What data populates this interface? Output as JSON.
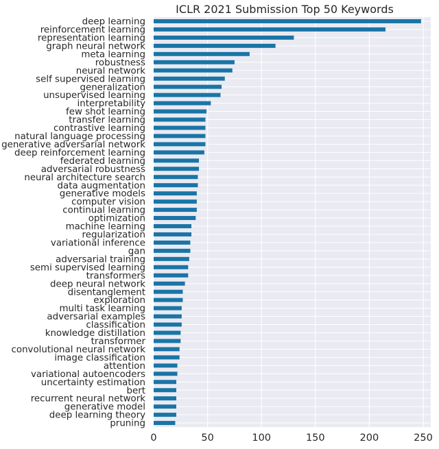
{
  "chart_data": {
    "type": "bar",
    "orientation": "horizontal",
    "title": "ICLR 2021 Submission Top 50 Keywords",
    "xlabel": "",
    "ylabel": "",
    "xlim": [
      0,
      257
    ],
    "xticks": [
      0,
      50,
      100,
      150,
      200,
      250
    ],
    "grid": true,
    "legend": "none",
    "bar_color": "#1a75a6",
    "background": "#eaeaf2",
    "grid_color": "#ffffff",
    "categories": [
      "deep learning",
      "reinforcement learning",
      "representation learning",
      "graph neural network",
      "meta learning",
      "robustness",
      "neural network",
      "self supervised learning",
      "generalization",
      "unsupervised learning",
      "interpretability",
      "few shot learning",
      "transfer learning",
      "contrastive learning",
      "natural language processing",
      "generative adversarial network",
      "deep reinforcement learning",
      "federated learning",
      "adversarial robustness",
      "neural architecture search",
      "data augmentation",
      "generative models",
      "computer vision",
      "continual learning",
      "optimization",
      "machine learning",
      "regularization",
      "variational inference",
      "gan",
      "adversarial training",
      "semi supervised learning",
      "transformers",
      "deep neural network",
      "disentanglement",
      "exploration",
      "multi task learning",
      "adversarial examples",
      "classification",
      "knowledge distillation",
      "transformer",
      "convolutional neural network",
      "image classification",
      "attention",
      "variational autoencoders",
      "uncertainty estimation",
      "bert",
      "recurrent neural network",
      "generative model",
      "deep learning theory",
      "pruning"
    ],
    "values": [
      248,
      215,
      130,
      113,
      89,
      75,
      73,
      66,
      63,
      62,
      53,
      49,
      48,
      48,
      48,
      48,
      47,
      42,
      42,
      41,
      41,
      40,
      40,
      40,
      39,
      35,
      35,
      34,
      34,
      33,
      32,
      32,
      29,
      27,
      27,
      26,
      26,
      26,
      25,
      25,
      24,
      24,
      22,
      22,
      21,
      21,
      21,
      21,
      21,
      20
    ]
  }
}
